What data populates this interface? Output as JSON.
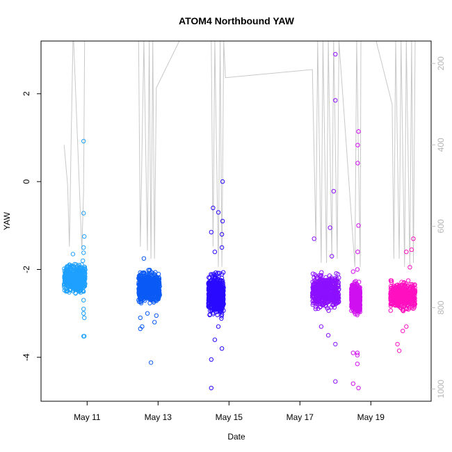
{
  "chart_data": {
    "type": "scatter",
    "title": "ATOM4 Northbound YAW",
    "xlabel": "Date",
    "ylabel": "YAW",
    "x_tick_labels": [
      "May 11",
      "May 13",
      "May 15",
      "May 17",
      "May 19"
    ],
    "x_tick_values": [
      11,
      13,
      15,
      17,
      19
    ],
    "xlim": [
      9.7,
      20.7
    ],
    "ylim": [
      -5.0,
      3.2
    ],
    "y_ticks": [
      -4,
      -2,
      0,
      2
    ],
    "y_tick_labels": [
      "-4",
      "-2",
      "0",
      "2"
    ],
    "secondary_axis": {
      "side": "right",
      "reversed": true,
      "ylim": [
        1030,
        145
      ],
      "ticks": [
        200,
        400,
        600,
        800,
        1000
      ],
      "tick_labels": [
        "200",
        "400",
        "600",
        "800",
        "1000"
      ],
      "color": "#bebebe"
    },
    "grid": false,
    "legend": "none",
    "point_colors": [
      "#1ea0ff",
      "#0a5af5",
      "#2a0aff",
      "#8c10ff",
      "#d010f0",
      "#ff10c0"
    ],
    "series": [
      {
        "color": "#1ea0ff",
        "x_range": [
          10.35,
          10.95
        ],
        "core_y": [
          -2.6,
          -1.8
        ],
        "points": [
          [
            10.9,
            0.92
          ],
          [
            10.9,
            -0.72
          ],
          [
            10.92,
            -1.25
          ],
          [
            10.9,
            -1.5
          ],
          [
            10.9,
            -1.62
          ],
          [
            10.88,
            -1.8
          ],
          [
            10.6,
            -1.65
          ],
          [
            10.9,
            -2.7
          ],
          [
            10.9,
            -2.9
          ],
          [
            10.9,
            -3.0
          ],
          [
            10.92,
            -3.1
          ],
          [
            10.9,
            -3.52
          ],
          [
            10.92,
            -3.52
          ]
        ]
      },
      {
        "color": "#0a5af5",
        "x_range": [
          12.45,
          13.05
        ],
        "core_y": [
          -2.9,
          -1.95
        ],
        "points": [
          [
            12.6,
            -1.75
          ],
          [
            12.5,
            -3.1
          ],
          [
            12.5,
            -3.35
          ],
          [
            12.55,
            -3.3
          ],
          [
            12.9,
            -3.2
          ],
          [
            12.95,
            -3.05
          ],
          [
            12.8,
            -4.12
          ],
          [
            12.7,
            -3.0
          ]
        ]
      },
      {
        "color": "#2a0aff",
        "x_range": [
          14.42,
          14.85
        ],
        "core_y": [
          -3.2,
          -1.95
        ],
        "points": [
          [
            14.82,
            0.0
          ],
          [
            14.82,
            -0.9
          ],
          [
            14.8,
            -1.2
          ],
          [
            14.55,
            -0.6
          ],
          [
            14.7,
            -0.7
          ],
          [
            14.5,
            -1.15
          ],
          [
            14.8,
            -1.5
          ],
          [
            14.6,
            -1.6
          ],
          [
            14.8,
            -3.8
          ],
          [
            14.5,
            -4.05
          ],
          [
            14.5,
            -4.7
          ],
          [
            14.6,
            -3.6
          ],
          [
            14.7,
            -3.3
          ]
        ]
      },
      {
        "color": "#8c10ff",
        "x_range": [
          17.35,
          18.1
        ],
        "core_y": [
          -3.0,
          -2.0
        ],
        "points": [
          [
            18.0,
            2.9
          ],
          [
            18.0,
            1.85
          ],
          [
            17.95,
            -0.22
          ],
          [
            17.85,
            -1.05
          ],
          [
            17.9,
            -1.7
          ],
          [
            17.4,
            -1.3
          ],
          [
            18.0,
            -3.7
          ],
          [
            18.0,
            -4.55
          ],
          [
            17.6,
            -3.3
          ],
          [
            17.8,
            -3.5
          ]
        ]
      },
      {
        "color": "#d010f0",
        "x_range": [
          18.45,
          18.7
        ],
        "core_y": [
          -3.1,
          -2.2
        ],
        "points": [
          [
            18.65,
            1.14
          ],
          [
            18.63,
            0.83
          ],
          [
            18.63,
            0.42
          ],
          [
            18.65,
            -1.0
          ],
          [
            18.63,
            -1.6
          ],
          [
            18.62,
            -2.0
          ],
          [
            18.5,
            -2.05
          ],
          [
            18.5,
            -3.9
          ],
          [
            18.5,
            -4.6
          ],
          [
            18.62,
            -4.15
          ],
          [
            18.62,
            -3.9
          ],
          [
            18.62,
            -3.95
          ],
          [
            18.65,
            -4.7
          ]
        ]
      },
      {
        "color": "#ff10c0",
        "x_range": [
          19.55,
          20.25
        ],
        "core_y": [
          -3.0,
          -2.2
        ],
        "points": [
          [
            20.2,
            -1.3
          ],
          [
            20.15,
            -1.55
          ],
          [
            20.0,
            -1.6
          ],
          [
            20.1,
            -1.95
          ],
          [
            19.75,
            -3.7
          ],
          [
            19.8,
            -3.85
          ],
          [
            20.0,
            -3.3
          ],
          [
            19.9,
            -3.4
          ]
        ]
      }
    ],
    "gray_trace": {
      "color": "#c8c8c8",
      "axis": "secondary",
      "points": [
        [
          10.35,
          400
        ],
        [
          10.45,
          500
        ],
        [
          10.5,
          650
        ],
        [
          10.55,
          380
        ],
        [
          10.6,
          130
        ],
        [
          10.62,
          140
        ],
        [
          10.85,
          660
        ],
        [
          10.9,
          515
        ],
        [
          10.93,
          120
        ],
        [
          12.45,
          130
        ],
        [
          12.5,
          650
        ],
        [
          12.6,
          120
        ],
        [
          12.7,
          660
        ],
        [
          12.75,
          130
        ],
        [
          12.8,
          680
        ],
        [
          12.85,
          125
        ],
        [
          12.9,
          680
        ],
        [
          12.95,
          260
        ],
        [
          13.6,
          120
        ],
        [
          14.5,
          100
        ],
        [
          14.55,
          650
        ],
        [
          14.6,
          110
        ],
        [
          14.7,
          700
        ],
        [
          14.75,
          110
        ],
        [
          14.8,
          700
        ],
        [
          14.85,
          110
        ],
        [
          14.9,
          235
        ],
        [
          17.35,
          215
        ],
        [
          17.45,
          640
        ],
        [
          17.5,
          110
        ],
        [
          17.6,
          690
        ],
        [
          17.65,
          110
        ],
        [
          17.75,
          690
        ],
        [
          17.8,
          110
        ],
        [
          17.9,
          680
        ],
        [
          17.95,
          110
        ],
        [
          18.05,
          680
        ],
        [
          18.1,
          110
        ],
        [
          18.55,
          700
        ],
        [
          18.6,
          110
        ],
        [
          18.7,
          700
        ],
        [
          18.72,
          110
        ],
        [
          19.15,
          110
        ],
        [
          19.6,
          300
        ],
        [
          19.65,
          680
        ],
        [
          19.7,
          110
        ],
        [
          19.8,
          680
        ],
        [
          19.85,
          110
        ],
        [
          19.95,
          700
        ],
        [
          20.0,
          110
        ],
        [
          20.1,
          700
        ],
        [
          20.15,
          110
        ],
        [
          20.2,
          690
        ],
        [
          20.25,
          110
        ]
      ]
    }
  }
}
